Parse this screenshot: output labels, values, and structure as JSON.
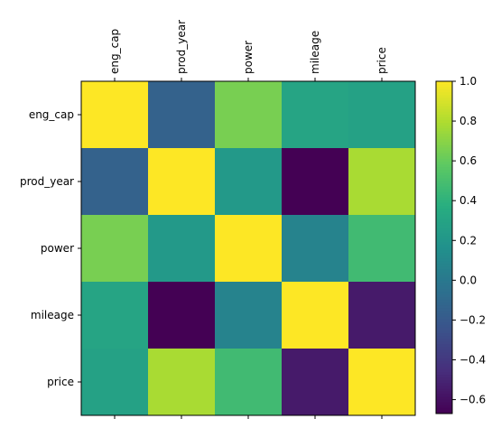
{
  "chart_data": {
    "type": "heatmap",
    "title": "",
    "xlabel": "",
    "ylabel": "",
    "x_categories": [
      "eng_cap",
      "prod_year",
      "power",
      "mileage",
      "price"
    ],
    "y_categories": [
      "eng_cap",
      "prod_year",
      "power",
      "mileage",
      "price"
    ],
    "values": [
      [
        1.0,
        -0.15,
        0.65,
        0.3,
        0.28
      ],
      [
        -0.15,
        1.0,
        0.22,
        -0.67,
        0.78
      ],
      [
        0.65,
        0.22,
        1.0,
        0.07,
        0.47
      ],
      [
        0.3,
        -0.67,
        0.07,
        1.0,
        -0.55
      ],
      [
        0.28,
        0.78,
        0.47,
        -0.55,
        1.0
      ]
    ],
    "colormap": "viridis",
    "colorbar": {
      "range": [
        -0.67,
        1.0
      ],
      "ticks": [
        1.0,
        0.8,
        0.6,
        0.4,
        0.2,
        0.0,
        -0.2,
        -0.4,
        -0.6
      ],
      "tick_labels": [
        "1.0",
        "0.8",
        "0.6",
        "0.4",
        "0.2",
        "0.0",
        "−0.2",
        "−0.4",
        "−0.6"
      ]
    },
    "x_tick_position": "top",
    "grid": false
  }
}
